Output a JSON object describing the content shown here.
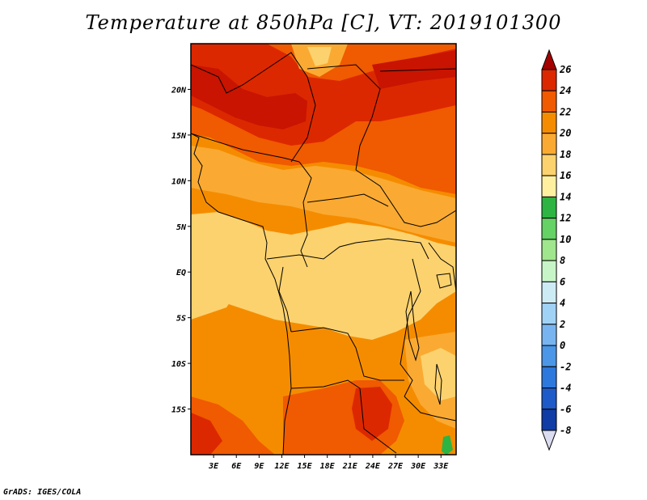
{
  "title": "Temperature at 850hPa [C], VT: 2019101300",
  "credit": "GrADS: IGES/COLA",
  "map": {
    "region": "Central Africa",
    "lon_range_deg": [
      0,
      35
    ],
    "lat_range_deg": [
      -20,
      25
    ],
    "lon_ticks": [
      "3E",
      "6E",
      "9E",
      "12E",
      "15E",
      "18E",
      "21E",
      "24E",
      "27E",
      "30E",
      "33E"
    ],
    "lat_ticks": [
      "20N",
      "15N",
      "10N",
      "5N",
      "EQ",
      "5S",
      "10S",
      "15S"
    ]
  },
  "colorbar": {
    "labels": [
      "26",
      "24",
      "22",
      "20",
      "18",
      "16",
      "14",
      "12",
      "10",
      "8",
      "6",
      "4",
      "2",
      "0",
      "-2",
      "-4",
      "-6",
      "-8"
    ],
    "colors": [
      "#a50000",
      "#dc2800",
      "#f05a00",
      "#f58c00",
      "#faaa32",
      "#fcd26e",
      "#fff0a0",
      "#2db442",
      "#64d264",
      "#a0e68c",
      "#c8f5c8",
      "#cdebf5",
      "#a0d2f5",
      "#78b4f0",
      "#4b96e6",
      "#2d78dc",
      "#1e5ac8",
      "#0f3ca5",
      "#00146e",
      "#dcdcf0"
    ],
    "legend_colors": {
      "top_arrow": "#dc2800",
      "bottom_arrow": "#dcdcf0"
    }
  },
  "chart_data": {
    "type": "heatmap",
    "title": "Temperature at 850hPa [C], VT: 2019101300",
    "variable": "Temperature at 850hPa",
    "units": "C",
    "valid_time": "2019101300",
    "x_ticks": [
      "3E",
      "6E",
      "9E",
      "12E",
      "15E",
      "18E",
      "21E",
      "24E",
      "27E",
      "30E",
      "33E"
    ],
    "y_ticks": [
      "20N",
      "15N",
      "10N",
      "5N",
      "EQ",
      "5S",
      "10S",
      "15S"
    ],
    "color_levels": [
      26,
      24,
      22,
      20,
      18,
      16,
      14,
      12,
      10,
      8,
      6,
      4,
      2,
      0,
      -2,
      -4,
      -6,
      -8
    ],
    "value_range": [
      -8,
      26
    ]
  }
}
